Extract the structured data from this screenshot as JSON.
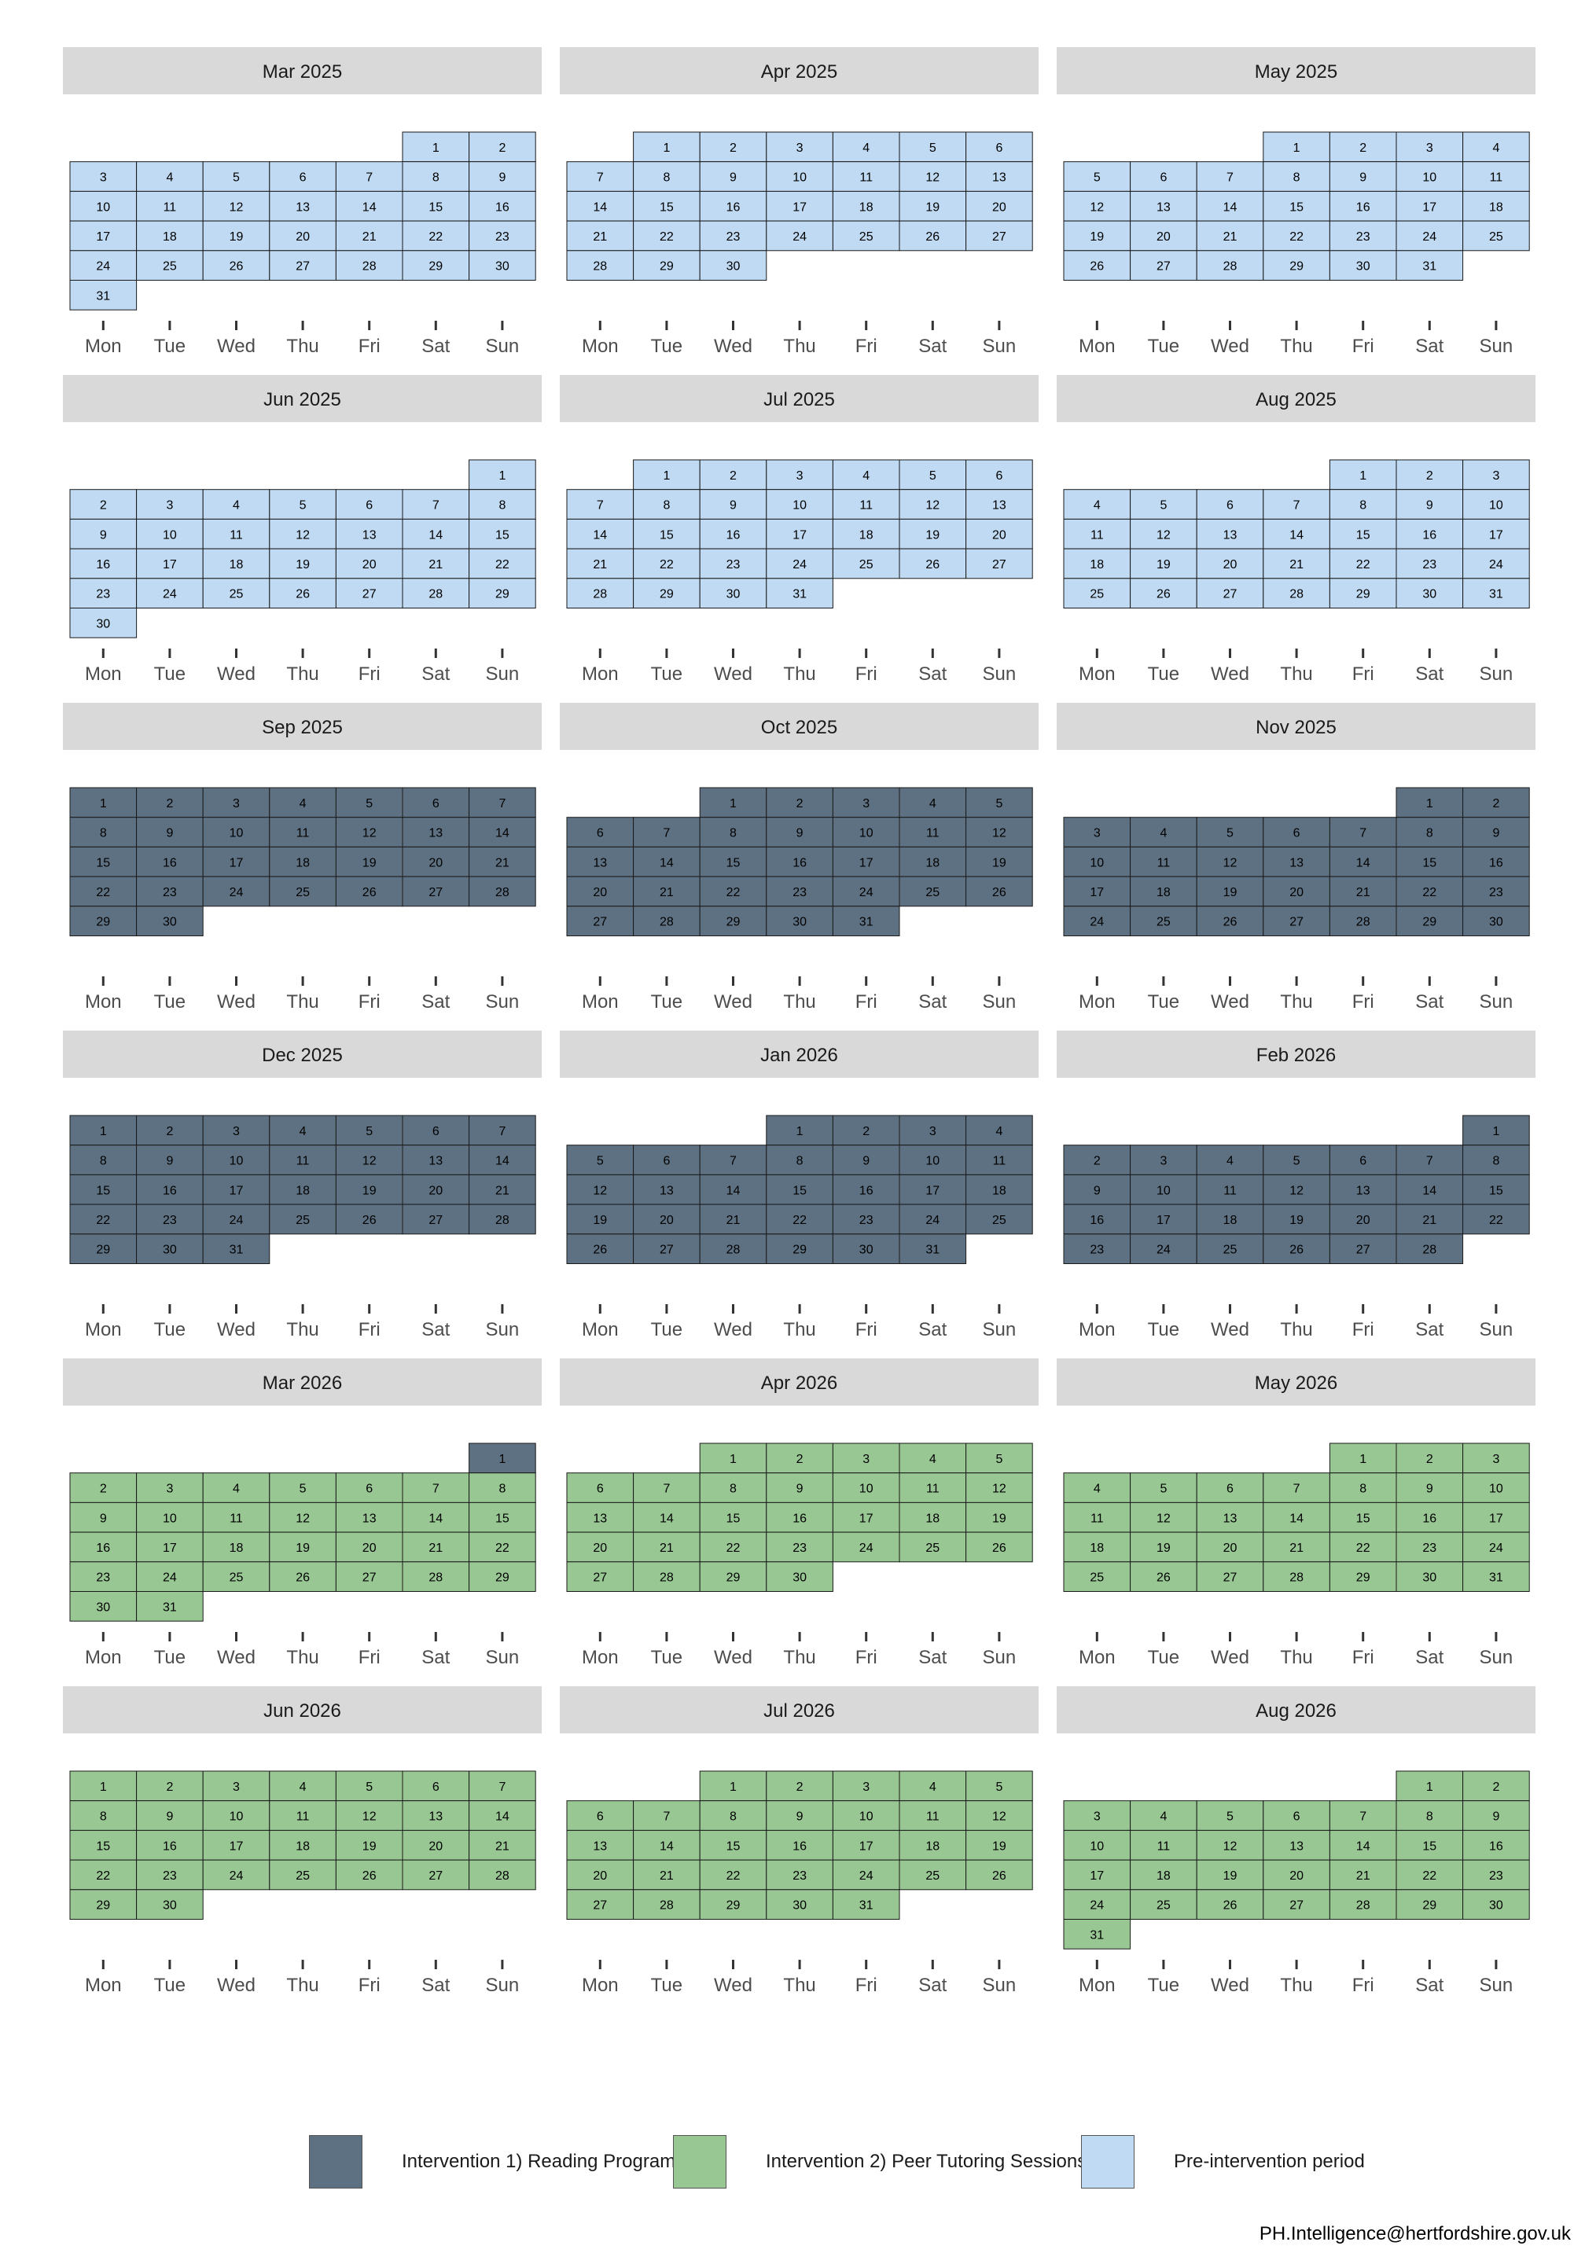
{
  "chart_data": {
    "type": "heatmap",
    "subtype": "calendar",
    "weekday_labels": [
      "Mon",
      "Tue",
      "Wed",
      "Thu",
      "Fri",
      "Sat",
      "Sun"
    ],
    "panel_layout": "6 rows x 3 columns",
    "colors": {
      "Intervention 1) Reading Program": "#5e7182",
      "Intervention 2) Peer Tutoring Sessions": "#98c794",
      "Pre-intervention period": "#bfdaf2",
      "strip": "#d9d9d9"
    },
    "months": [
      {
        "label": "Mar 2025",
        "year": 2025,
        "month": 3,
        "days": 31,
        "category": "Pre-intervention period",
        "first_day_override": null
      },
      {
        "label": "Apr 2025",
        "year": 2025,
        "month": 4,
        "days": 30,
        "category": "Pre-intervention period",
        "first_day_override": null
      },
      {
        "label": "May 2025",
        "year": 2025,
        "month": 5,
        "days": 31,
        "category": "Pre-intervention period",
        "first_day_override": null
      },
      {
        "label": "Jun 2025",
        "year": 2025,
        "month": 6,
        "days": 30,
        "category": "Pre-intervention period",
        "first_day_override": null
      },
      {
        "label": "Jul 2025",
        "year": 2025,
        "month": 7,
        "days": 31,
        "category": "Pre-intervention period",
        "first_day_override": null
      },
      {
        "label": "Aug 2025",
        "year": 2025,
        "month": 8,
        "days": 31,
        "category": "Pre-intervention period",
        "first_day_override": null
      },
      {
        "label": "Sep 2025",
        "year": 2025,
        "month": 9,
        "days": 30,
        "category": "Intervention 1) Reading Program",
        "first_day_override": null
      },
      {
        "label": "Oct 2025",
        "year": 2025,
        "month": 10,
        "days": 31,
        "category": "Intervention 1) Reading Program",
        "first_day_override": null
      },
      {
        "label": "Nov 2025",
        "year": 2025,
        "month": 11,
        "days": 30,
        "category": "Intervention 1) Reading Program",
        "first_day_override": null
      },
      {
        "label": "Dec 2025",
        "year": 2025,
        "month": 12,
        "days": 31,
        "category": "Intervention 1) Reading Program",
        "first_day_override": null
      },
      {
        "label": "Jan 2026",
        "year": 2026,
        "month": 1,
        "days": 31,
        "category": "Intervention 1) Reading Program",
        "first_day_override": null
      },
      {
        "label": "Feb 2026",
        "year": 2026,
        "month": 2,
        "days": 28,
        "category": "Intervention 1) Reading Program",
        "first_day_override": null
      },
      {
        "label": "Mar 2026",
        "year": 2026,
        "month": 3,
        "days": 31,
        "category": "Intervention 2) Peer Tutoring Sessions",
        "first_day_override": "Intervention 1) Reading Program"
      },
      {
        "label": "Apr 2026",
        "year": 2026,
        "month": 4,
        "days": 30,
        "category": "Intervention 2) Peer Tutoring Sessions",
        "first_day_override": null
      },
      {
        "label": "May 2026",
        "year": 2026,
        "month": 5,
        "days": 31,
        "category": "Intervention 2) Peer Tutoring Sessions",
        "first_day_override": null
      },
      {
        "label": "Jun 2026",
        "year": 2026,
        "month": 6,
        "days": 30,
        "category": "Intervention 2) Peer Tutoring Sessions",
        "first_day_override": null
      },
      {
        "label": "Jul 2026",
        "year": 2026,
        "month": 7,
        "days": 31,
        "category": "Intervention 2) Peer Tutoring Sessions",
        "first_day_override": null
      },
      {
        "label": "Aug 2026",
        "year": 2026,
        "month": 8,
        "days": 31,
        "category": "Intervention 2) Peer Tutoring Sessions",
        "first_day_override": null
      }
    ],
    "legend": {
      "placement": "bottom",
      "items": [
        {
          "label": "Intervention 1) Reading Program",
          "color": "#5e7182"
        },
        {
          "label": "Intervention 2) Peer Tutoring Sessions",
          "color": "#98c794"
        },
        {
          "label": "Pre-intervention period",
          "color": "#bfdaf2"
        }
      ]
    }
  },
  "caption": "PH.Intelligence@hertfordshire.gov.uk"
}
